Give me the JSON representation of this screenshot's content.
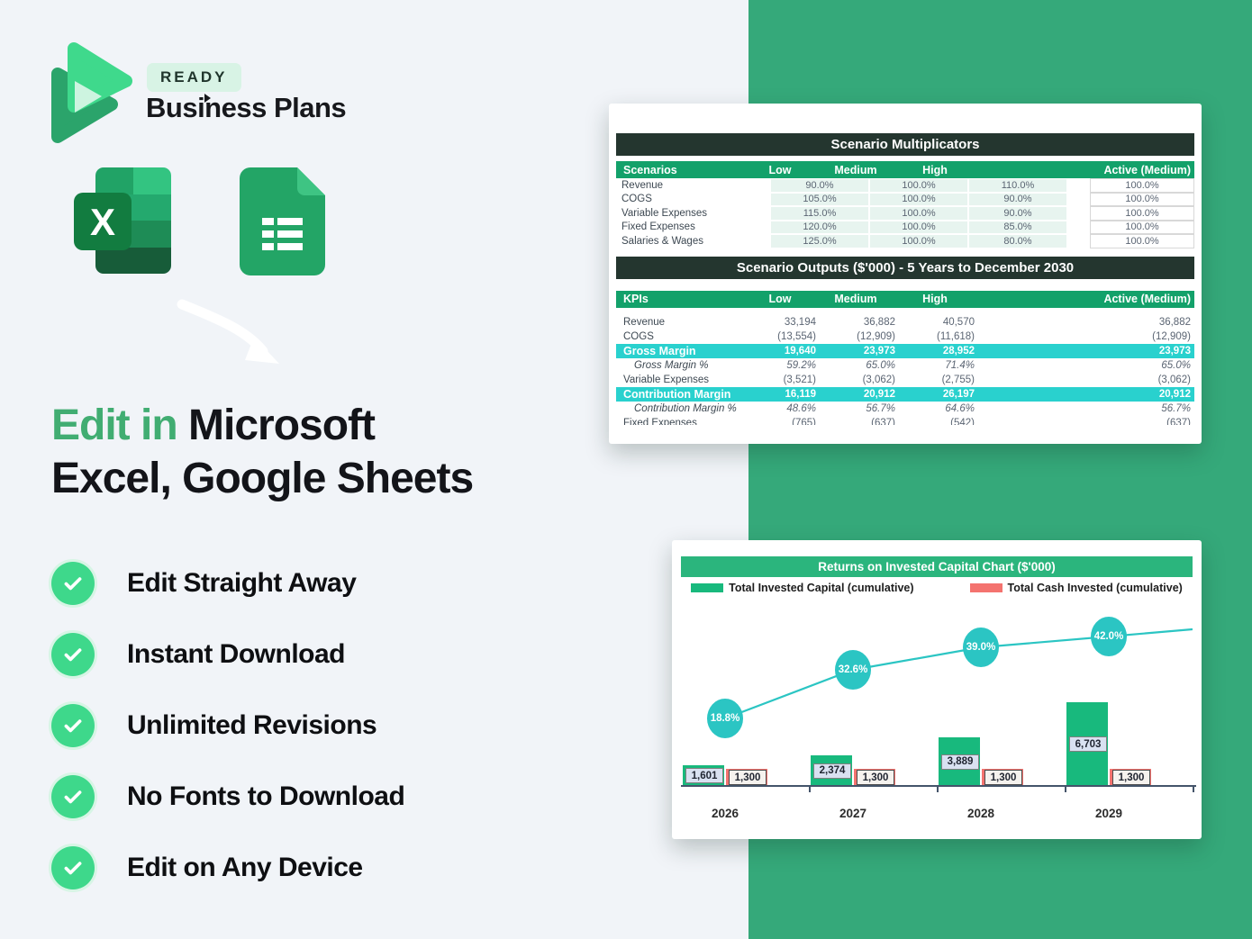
{
  "brand": {
    "badge": "READY",
    "name": "Business Plans"
  },
  "headline": {
    "accent": "Edit in",
    "line1_rest": " Microsoft",
    "line2": "Excel, Google Sheets"
  },
  "features": [
    "Edit Straight Away",
    "Instant Download",
    "Unlimited Revisions",
    "No Fonts to Download",
    "Edit on Any Device"
  ],
  "multiplicators": {
    "title": "Scenario Multiplicators",
    "columns": [
      "Scenarios",
      "Low",
      "Medium",
      "High",
      "Active (Medium)"
    ],
    "rows": [
      {
        "label": "Revenue",
        "low": "90.0%",
        "medium": "100.0%",
        "high": "110.0%",
        "active": "100.0%"
      },
      {
        "label": "COGS",
        "low": "105.0%",
        "medium": "100.0%",
        "high": "90.0%",
        "active": "100.0%"
      },
      {
        "label": "Variable Expenses",
        "low": "115.0%",
        "medium": "100.0%",
        "high": "90.0%",
        "active": "100.0%"
      },
      {
        "label": "Fixed Expenses",
        "low": "120.0%",
        "medium": "100.0%",
        "high": "85.0%",
        "active": "100.0%"
      },
      {
        "label": "Salaries & Wages",
        "low": "125.0%",
        "medium": "100.0%",
        "high": "80.0%",
        "active": "100.0%"
      }
    ]
  },
  "outputs": {
    "title": "Scenario Outputs ($'000) - 5 Years to December 2030",
    "columns": [
      "KPIs",
      "Low",
      "Medium",
      "High",
      "Active (Medium)"
    ],
    "rows": [
      {
        "label": "Revenue",
        "style": "normal",
        "values": [
          "33,194",
          "36,882",
          "40,570",
          "36,882"
        ]
      },
      {
        "label": "COGS",
        "style": "normal",
        "values": [
          "(13,554)",
          "(12,909)",
          "(11,618)",
          "(12,909)"
        ]
      },
      {
        "label": "Gross Margin",
        "style": "highlight",
        "values": [
          "19,640",
          "23,973",
          "28,952",
          "23,973"
        ]
      },
      {
        "label": "Gross Margin %",
        "style": "percent",
        "values": [
          "59.2%",
          "65.0%",
          "71.4%",
          "65.0%"
        ]
      },
      {
        "label": "Variable Expenses",
        "style": "normal",
        "values": [
          "(3,521)",
          "(3,062)",
          "(2,755)",
          "(3,062)"
        ]
      },
      {
        "label": "Contribution Margin",
        "style": "highlight",
        "values": [
          "16,119",
          "20,912",
          "26,197",
          "20,912"
        ]
      },
      {
        "label": "Contribution Margin %",
        "style": "percent",
        "values": [
          "48.6%",
          "56.7%",
          "64.6%",
          "56.7%"
        ]
      },
      {
        "label": "Fixed Expenses",
        "style": "normal",
        "values": [
          "(765)",
          "(637)",
          "(542)",
          "(637)"
        ]
      }
    ]
  },
  "chart_data": {
    "type": "bar+line",
    "title": "Returns on Invested Capital Chart ($'000)",
    "categories": [
      "2026",
      "2027",
      "2028",
      "2029"
    ],
    "series": [
      {
        "name": "Total Invested Capital (cumulative)",
        "type": "bar",
        "color": "#18b97d",
        "values": [
          1601,
          2374,
          3889,
          6703
        ],
        "labels": [
          "1,601",
          "2,374",
          "3,889",
          "6,703"
        ]
      },
      {
        "name": "Total Cash Invested (cumulative)",
        "type": "bar",
        "color": "#f4736f",
        "values": [
          1300,
          1300,
          1300,
          1300
        ],
        "labels": [
          "1,300",
          "1,300",
          "1,300",
          "1,300"
        ]
      }
    ],
    "line_overlay": {
      "color": "#2bc5c3",
      "values": [
        18.8,
        32.6,
        39.0,
        42.0
      ],
      "labels": [
        "18.8%",
        "32.6%",
        "39.0%",
        "42.0%"
      ]
    },
    "legend_position": "top",
    "ylim": [
      0,
      7600
    ]
  },
  "colors": {
    "accent_green": "#41ad72",
    "panel_green": "#35a97a",
    "header_dark": "#24362f",
    "table_header_green": "#13a16a",
    "highlight_cyan": "#29d1ce",
    "bar_green": "#18b97d",
    "bar_red": "#f4736f",
    "line_teal": "#2bc5c3",
    "check_green": "#3ed88b"
  }
}
